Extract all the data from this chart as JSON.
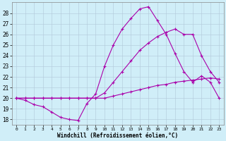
{
  "xlabel": "Windchill (Refroidissement éolien,°C)",
  "xlim": [
    -0.5,
    23.5
  ],
  "ylim": [
    17.5,
    29
  ],
  "yticks": [
    18,
    19,
    20,
    21,
    22,
    23,
    24,
    25,
    26,
    27,
    28
  ],
  "xticks": [
    0,
    1,
    2,
    3,
    4,
    5,
    6,
    7,
    8,
    9,
    10,
    11,
    12,
    13,
    14,
    15,
    16,
    17,
    18,
    19,
    20,
    21,
    22,
    23
  ],
  "background_color": "#d0eef8",
  "grid_color": "#b0c8d8",
  "line_color": "#aa00aa",
  "series": [
    {
      "x": [
        0,
        1,
        2,
        3,
        4,
        5,
        6,
        7,
        8,
        9,
        10,
        11,
        12,
        13,
        14,
        15,
        16,
        17,
        18,
        19,
        20,
        21,
        22,
        23
      ],
      "y": [
        20,
        19.8,
        19.4,
        19.2,
        18.7,
        18.2,
        18.0,
        17.9,
        19.5,
        20.4,
        23.0,
        25.0,
        26.5,
        27.5,
        28.4,
        28.6,
        27.3,
        26.0,
        24.2,
        22.5,
        21.5,
        22.1,
        21.5,
        20.0
      ]
    },
    {
      "x": [
        0,
        1,
        2,
        3,
        4,
        5,
        6,
        7,
        8,
        9,
        10,
        11,
        12,
        13,
        14,
        15,
        16,
        17,
        18,
        19,
        20,
        21,
        22,
        23
      ],
      "y": [
        20,
        20,
        20,
        20,
        20,
        20,
        20,
        20,
        20,
        20,
        20.5,
        21.5,
        22.5,
        23.5,
        24.5,
        25.2,
        25.8,
        26.2,
        26.5,
        26.0,
        26.0,
        24.0,
        22.5,
        21.5
      ]
    },
    {
      "x": [
        0,
        1,
        2,
        3,
        4,
        5,
        6,
        7,
        8,
        9,
        10,
        11,
        12,
        13,
        14,
        15,
        16,
        17,
        18,
        19,
        20,
        21,
        22,
        23
      ],
      "y": [
        20,
        20,
        20,
        20,
        20,
        20,
        20,
        20,
        20,
        20,
        20,
        20.2,
        20.4,
        20.6,
        20.8,
        21.0,
        21.2,
        21.3,
        21.5,
        21.6,
        21.7,
        21.8,
        21.9,
        21.8
      ]
    }
  ]
}
